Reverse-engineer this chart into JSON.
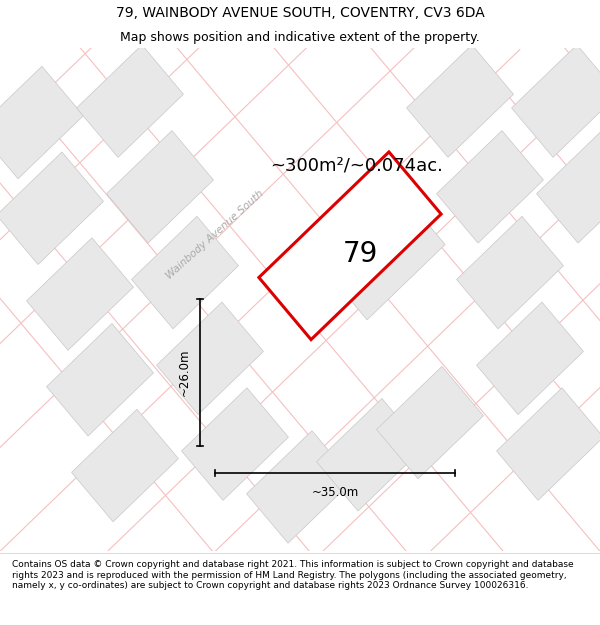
{
  "title": "79, WAINBODY AVENUE SOUTH, COVENTRY, CV3 6DA",
  "subtitle": "Map shows position and indicative extent of the property.",
  "footer": "Contains OS data © Crown copyright and database right 2021. This information is subject to Crown copyright and database rights 2023 and is reproduced with the permission of HM Land Registry. The polygons (including the associated geometry, namely x, y co-ordinates) are subject to Crown copyright and database rights 2023 Ordnance Survey 100026316.",
  "area_text": "~300m²/~0.074ac.",
  "property_number": "79",
  "dim_width": "~35.0m",
  "dim_height": "~26.0m",
  "street_label": "Wainbody Avenue South",
  "bg_color": "#ffffff",
  "red_color": "#dd0000",
  "road_color": "#f5c0c0",
  "building_fill": "#e8e8e8",
  "building_edge": "#c8c8c8",
  "title_fontsize": 10,
  "subtitle_fontsize": 9,
  "footer_fontsize": 6.5
}
